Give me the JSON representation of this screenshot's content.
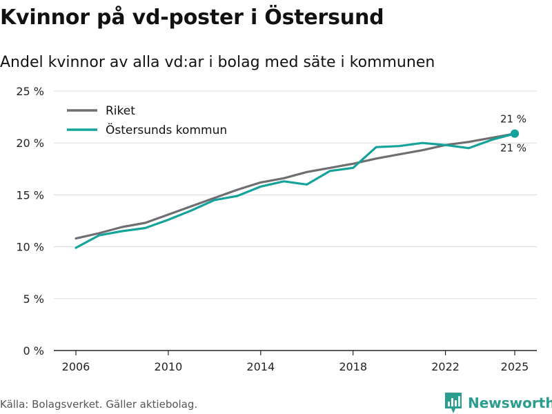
{
  "title": "Kvinnor på vd-poster i Östersund",
  "subtitle": "Andel kvinnor av alla vd:ar i bolag med säte i kommunen",
  "source": "Källa: Bolagsverket. Gäller aktiebolag.",
  "brand": "Newsworthy",
  "colors": {
    "riket": "#6e6d72",
    "ostersund": "#13a39a",
    "grid": "#dddddd",
    "axis": "#222222",
    "brand": "#2a9d8f"
  },
  "chart_data": {
    "type": "line",
    "x": [
      2006,
      2007,
      2008,
      2009,
      2010,
      2011,
      2012,
      2013,
      2014,
      2015,
      2016,
      2017,
      2018,
      2019,
      2020,
      2021,
      2022,
      2023,
      2024,
      2025
    ],
    "series": [
      {
        "name": "Riket",
        "values": [
          10.8,
          11.3,
          11.9,
          12.3,
          13.1,
          13.9,
          14.7,
          15.5,
          16.2,
          16.6,
          17.2,
          17.6,
          18.0,
          18.5,
          18.9,
          19.3,
          19.8,
          20.1,
          20.5,
          20.9
        ]
      },
      {
        "name": "Östersunds kommun",
        "values": [
          9.9,
          11.1,
          11.5,
          11.8,
          12.6,
          13.5,
          14.5,
          14.9,
          15.8,
          16.3,
          16.0,
          17.3,
          17.6,
          19.6,
          19.7,
          20.0,
          19.8,
          19.5,
          20.3,
          20.9
        ]
      }
    ],
    "annotations": [
      {
        "series": "Riket",
        "x": 2025,
        "text": "21 %"
      },
      {
        "series": "Östersunds kommun",
        "x": 2025,
        "text": "21 %"
      }
    ],
    "xticks": [
      2006,
      2010,
      2014,
      2018,
      2022,
      2025
    ],
    "yticks": [
      0,
      5,
      10,
      15,
      20,
      25
    ],
    "ytick_labels": [
      "0 %",
      "5 %",
      "10 %",
      "15 %",
      "20 %",
      "25 %"
    ],
    "ylim": [
      0,
      25
    ],
    "xlim": [
      2006,
      2025
    ],
    "xlabel": "",
    "ylabel": "",
    "grid": true,
    "legend": "top-left"
  }
}
